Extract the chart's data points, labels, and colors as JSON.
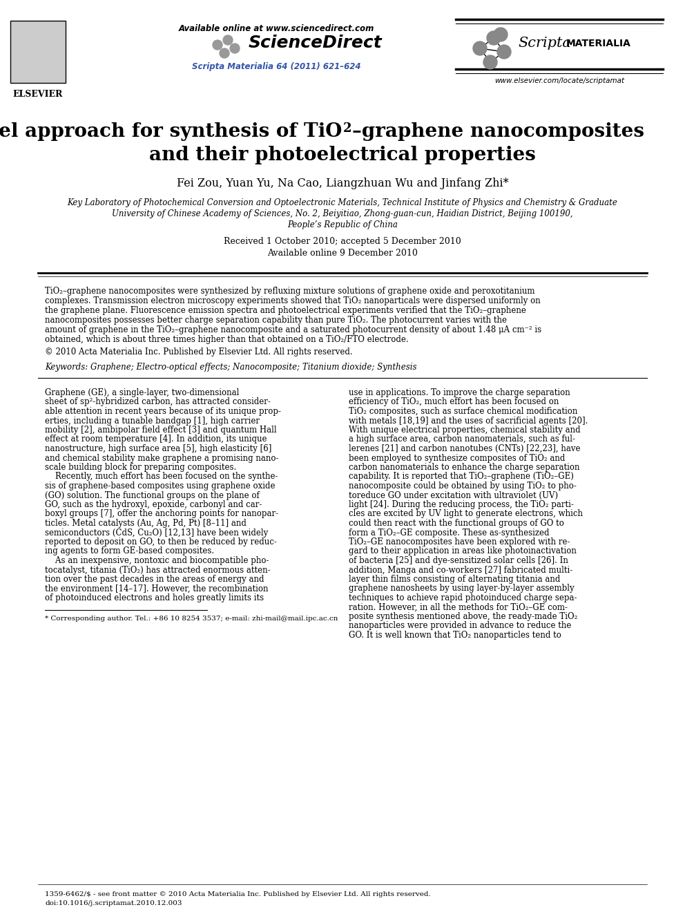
{
  "bg_color": "#ffffff",
  "header_available_online": "Available online at www.sciencedirect.com",
  "header_sciencedirect": "ScienceDirect",
  "header_journal": "Scripta Materialia 64 (2011) 621–624",
  "header_scripta": "Scripta",
  "header_materialia": "MATERIALIA",
  "header_url": "www.elsevier.com/locate/scriptamat",
  "title_line1": "A novel approach for synthesis of TiO",
  "title_sub2": "2",
  "title_line1b": "–graphene nanocomposites",
  "title_line2": "and their photoelectrical properties",
  "authors": "Fei Zou, Yuan Yu, Na Cao, Liangzhuan Wu and Jinfang Zhi*",
  "affiliation1": "Key Laboratory of Photochemical Conversion and Optoelectronic Materials, Technical Institute of Physics and Chemistry & Graduate",
  "affiliation2": "University of Chinese Academy of Sciences, No. 2, Beiyitiao, Zhong-guan-cun, Haidian District, Beijing 100190,",
  "affiliation3": "People’s Republic of China",
  "received": "Received 1 October 2010; accepted 5 December 2010",
  "available_online": "Available online 9 December 2010",
  "abstract_text": "TiO₂–graphene nanocomposites were synthesized by refluxing mixture solutions of graphene oxide and peroxotitanium complexes. Transmission electron microscopy experiments showed that TiO₂ nanoparticals were dispersed uniformly on the graphene plane. Fluorescence emission spectra and photoelectrical experiments verified that the TiO₂–graphene nanocomposites possesses better charge separation capability than pure TiO₂. The photocurrent varies with the amount of graphene in the TiO₂–graphene nanocomposite and a saturated photocurrent density of about 1.48 μA cm⁻² is obtained, which is about three times higher than that obtained on a TiO₂/FTO electrode.",
  "copyright": "© 2010 Acta Materialia Inc. Published by Elsevier Ltd. All rights reserved.",
  "keywords": "Keywords: Graphene; Electro-optical effects; Nanocomposite; Titanium dioxide; Synthesis",
  "body_col1_lines": [
    "Graphene (GE), a single-layer, two-dimensional",
    "sheet of sp²-hybridized carbon, has attracted consider-",
    "able attention in recent years because of its unique prop-",
    "erties, including a tunable bandgap [1], high carrier",
    "mobility [2], ambipolar field effect [3] and quantum Hall",
    "effect at room temperature [4]. In addition, its unique",
    "nanostructure, high surface area [5], high elasticity [6]",
    "and chemical stability make graphene a promising nano-",
    "scale building block for preparing composites.",
    "    Recently, much effort has been focused on the synthe-",
    "sis of graphene-based composites using graphene oxide",
    "(GO) solution. The functional groups on the plane of",
    "GO, such as the hydroxyl, epoxide, carbonyl and car-",
    "boxyl groups [7], offer the anchoring points for nanopar-",
    "ticles. Metal catalysts (Au, Ag, Pd, Pt) [8–11] and",
    "semiconductors (CdS, Cu₂O) [12,13] have been widely",
    "reported to deposit on GO, to then be reduced by reduc-",
    "ing agents to form GE-based composites.",
    "    As an inexpensive, nontoxic and biocompatible pho-",
    "tocatalyst, titania (TiO₂) has attracted enormous atten-",
    "tion over the past decades in the areas of energy and",
    "the environment [14–17]. However, the recombination",
    "of photoinduced electrons and holes greatly limits its"
  ],
  "body_col2_lines": [
    "use in applications. To improve the charge separation",
    "efficiency of TiO₂, much effort has been focused on",
    "TiO₂ composites, such as surface chemical modification",
    "with metals [18,19] and the uses of sacrificial agents [20].",
    "With unique electrical properties, chemical stability and",
    "a high surface area, carbon nanomaterials, such as ful-",
    "lerenes [21] and carbon nanotubes (CNTs) [22,23], have",
    "been employed to synthesize composites of TiO₂ and",
    "carbon nanomaterials to enhance the charge separation",
    "capability. It is reported that TiO₂–graphene (TiO₂–GE)",
    "nanocomposite could be obtained by using TiO₂ to pho-",
    "toreduce GO under excitation with ultraviolet (UV)",
    "light [24]. During the reducing process, the TiO₂ parti-",
    "cles are excited by UV light to generate electrons, which",
    "could then react with the functional groups of GO to",
    "form a TiO₂–GE composite. These as-synthesized",
    "TiO₂–GE nanocomposites have been explored with re-",
    "gard to their application in areas like photoinactivation",
    "of bacteria [25] and dye-sensitized solar cells [26]. In",
    "addition, Manga and co-workers [27] fabricated multi-",
    "layer thin films consisting of alternating titania and",
    "graphene nanosheets by using layer-by-layer assembly",
    "techniques to achieve rapid photoinduced charge sepa-",
    "ration. However, in all the methods for TiO₂–GE com-",
    "posite synthesis mentioned above, the ready-made TiO₂",
    "nanoparticles were provided in advance to reduce the",
    "GO. It is well known that TiO₂ nanoparticles tend to"
  ],
  "footnote": "* Corresponding author. Tel.: +86 10 8254 3537; e-mail: zhi-mail@mail.ipc.ac.cn",
  "footer_issn": "1359-6462/$ - see front matter © 2010 Acta Materialia Inc. Published by Elsevier Ltd. All rights reserved.",
  "footer_doi": "doi:10.1016/j.scriptamat.2010.12.003",
  "journal_color": "#3355aa",
  "sciencedirect_color": "#3366cc"
}
